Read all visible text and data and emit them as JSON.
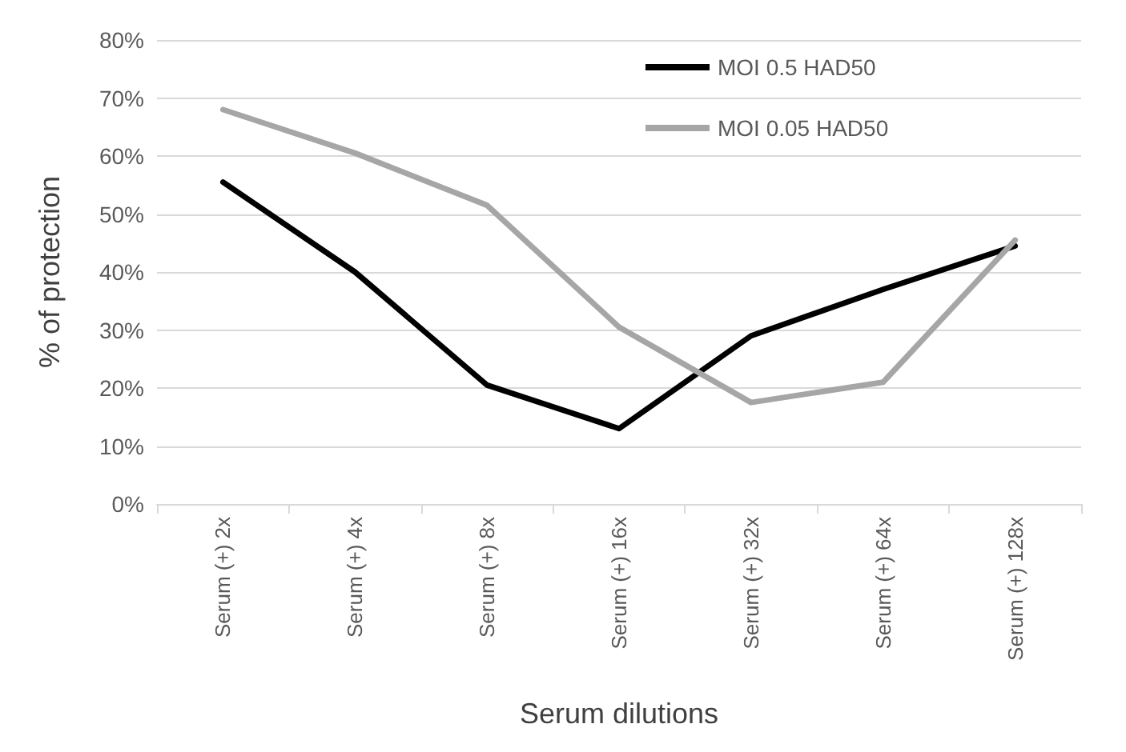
{
  "chart_data": {
    "type": "line",
    "xlabel": "Serum dilutions",
    "ylabel": "% of protection",
    "categories": [
      "Serum (+) 2x",
      "Serum (+) 4x",
      "Serum (+) 8x",
      "Serum (+) 16x",
      "Serum (+) 32x",
      "Serum (+) 64x",
      "Serum (+) 128x"
    ],
    "series": [
      {
        "name": "MOI 0.5 HAD50",
        "color": "#000000",
        "values": [
          55.5,
          40,
          20.5,
          13,
          29,
          37,
          44.5
        ]
      },
      {
        "name": "MOI 0.05 HAD50",
        "color": "#a6a6a6",
        "values": [
          68,
          60.5,
          51.5,
          30.5,
          17.5,
          21,
          45.5
        ]
      }
    ],
    "ylim": [
      0,
      80
    ],
    "yticks": [
      {
        "value": 0,
        "label": "0%"
      },
      {
        "value": 10,
        "label": "10%"
      },
      {
        "value": 20,
        "label": "20%"
      },
      {
        "value": 30,
        "label": "30%"
      },
      {
        "value": 40,
        "label": "40%"
      },
      {
        "value": 50,
        "label": "50%"
      },
      {
        "value": 60,
        "label": "60%"
      },
      {
        "value": 70,
        "label": "70%"
      },
      {
        "value": 80,
        "label": "80%"
      }
    ],
    "grid": "y",
    "legend": "top",
    "marker": "none",
    "line_style": "solid"
  }
}
